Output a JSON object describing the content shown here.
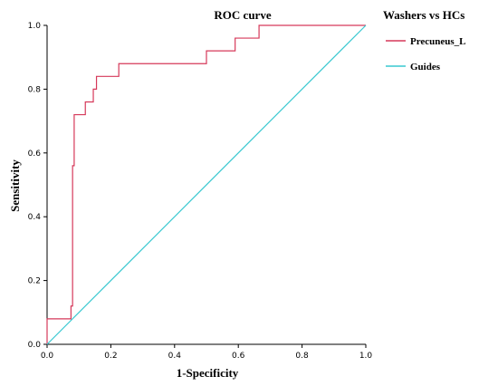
{
  "chart_data": {
    "type": "line",
    "title": "ROC curve",
    "xlabel": "1-Specificity",
    "ylabel": "Sensitivity",
    "xlim": [
      0,
      1
    ],
    "ylim": [
      0,
      1
    ],
    "x_ticks": [
      "0.0",
      "0.2",
      "0.4",
      "0.6",
      "0.8",
      "1.0"
    ],
    "y_ticks": [
      "0.0",
      "0.2",
      "0.4",
      "0.6",
      "0.8",
      "1.0"
    ],
    "grid": false,
    "legend": {
      "title": "Washers vs HCs",
      "placement": "right"
    },
    "series": [
      {
        "name": "Precuneus_L",
        "color": "#d6395a",
        "step": true,
        "x": [
          0.0,
          0.0,
          0.075,
          0.075,
          0.08,
          0.08,
          0.085,
          0.085,
          0.12,
          0.12,
          0.145,
          0.145,
          0.155,
          0.155,
          0.225,
          0.225,
          0.5,
          0.5,
          0.59,
          0.59,
          0.665,
          0.665,
          1.0
        ],
        "y": [
          0.0,
          0.08,
          0.08,
          0.12,
          0.12,
          0.56,
          0.56,
          0.72,
          0.72,
          0.76,
          0.76,
          0.8,
          0.8,
          0.84,
          0.84,
          0.88,
          0.88,
          0.92,
          0.92,
          0.96,
          0.96,
          1.0,
          1.0
        ]
      },
      {
        "name": "Guides",
        "color": "#38c8d0",
        "step": false,
        "x": [
          0.0,
          1.0
        ],
        "y": [
          0.0,
          1.0
        ]
      }
    ]
  }
}
